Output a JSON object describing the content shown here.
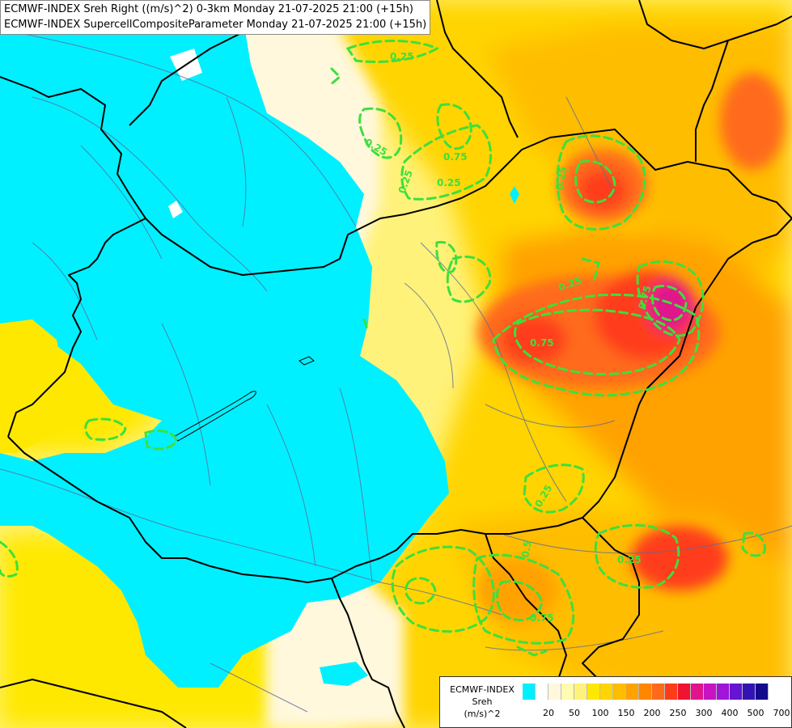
{
  "title": {
    "line1": "ECMWF-INDEX Sreh Right ((m/s)^2) 0-3km Monday 21-07-2025 21:00 (+15h)",
    "line2": "ECMWF-INDEX SupercellCompositeParameter Monday 21-07-2025 21:00 (+15h)"
  },
  "contour_labels": [
    "0.25",
    "0.25",
    "0.25",
    "0.75",
    "0.75",
    "0.25",
    "0.25",
    "0.75",
    "0.25",
    "0.5",
    "0.25",
    "0.75",
    "0.25"
  ],
  "legend": {
    "title_line1": "ECMWF-INDEX",
    "title_line2": "Sreh",
    "title_line3": "(m/s)^2",
    "colors": [
      "#00f0ff",
      "#ffffff",
      "#fff8dc",
      "#fffbb0",
      "#fff27a",
      "#ffe800",
      "#ffd400",
      "#ffbd00",
      "#ffa200",
      "#ff8600",
      "#ff6a1a",
      "#ff3c1a",
      "#f01430",
      "#e0148c",
      "#c814c0",
      "#a014dc",
      "#6414d2",
      "#3214b4",
      "#140a8c"
    ],
    "ticks": [
      "20",
      "50",
      "100",
      "150",
      "200",
      "250",
      "300",
      "400",
      "500",
      "700"
    ]
  }
}
